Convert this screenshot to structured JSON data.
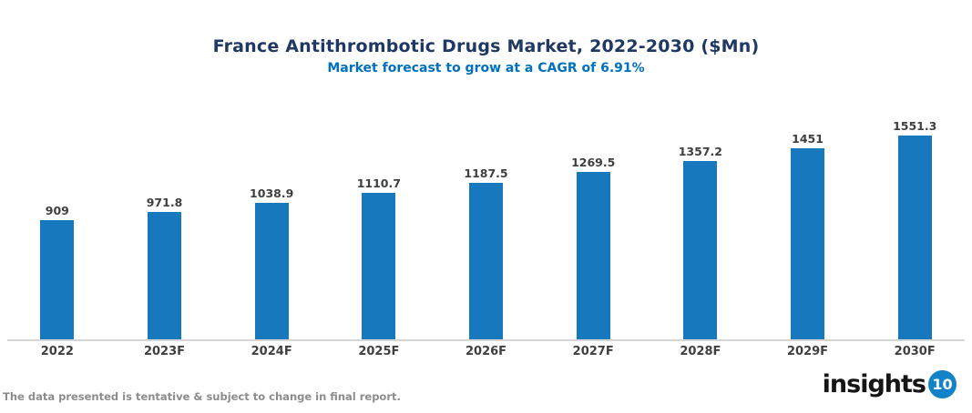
{
  "header": {
    "title": "France Antithrombotic Drugs Market, 2022-2030 ($Mn)",
    "subtitle": "Market forecast to grow at a CAGR of 6.91%"
  },
  "chart_data": {
    "type": "bar",
    "title": "France Antithrombotic Drugs Market, 2022-2030 ($Mn)",
    "subtitle": "Market forecast to grow at a CAGR of 6.91%",
    "categories": [
      "2022",
      "2023F",
      "2024F",
      "2025F",
      "2026F",
      "2027F",
      "2028F",
      "2029F",
      "2030F"
    ],
    "values": [
      909,
      971.8,
      1038.9,
      1110.7,
      1187.5,
      1269.5,
      1357.2,
      1451,
      1551.3
    ],
    "value_labels": [
      "909",
      "971.8",
      "1038.9",
      "1110.7",
      "1187.5",
      "1269.5",
      "1357.2",
      "1451",
      "1551.3"
    ],
    "xlabel": "",
    "ylabel": "",
    "ylim": [
      0,
      1750
    ],
    "grid": false,
    "legend": false,
    "data_label_position": "above-bar"
  },
  "colors": {
    "bar": "#1878BE",
    "title": "#1F3864",
    "subtitle": "#0070C0",
    "data_label": "#3F3F3F",
    "axis_line": "#D6D6D6",
    "footer_text": "#8C8C8C",
    "logo_badge": "#1283C6"
  },
  "footer": {
    "disclaimer": "The data presented is tentative & subject to change in final report."
  },
  "logo": {
    "text": "insights",
    "badge": "10"
  }
}
